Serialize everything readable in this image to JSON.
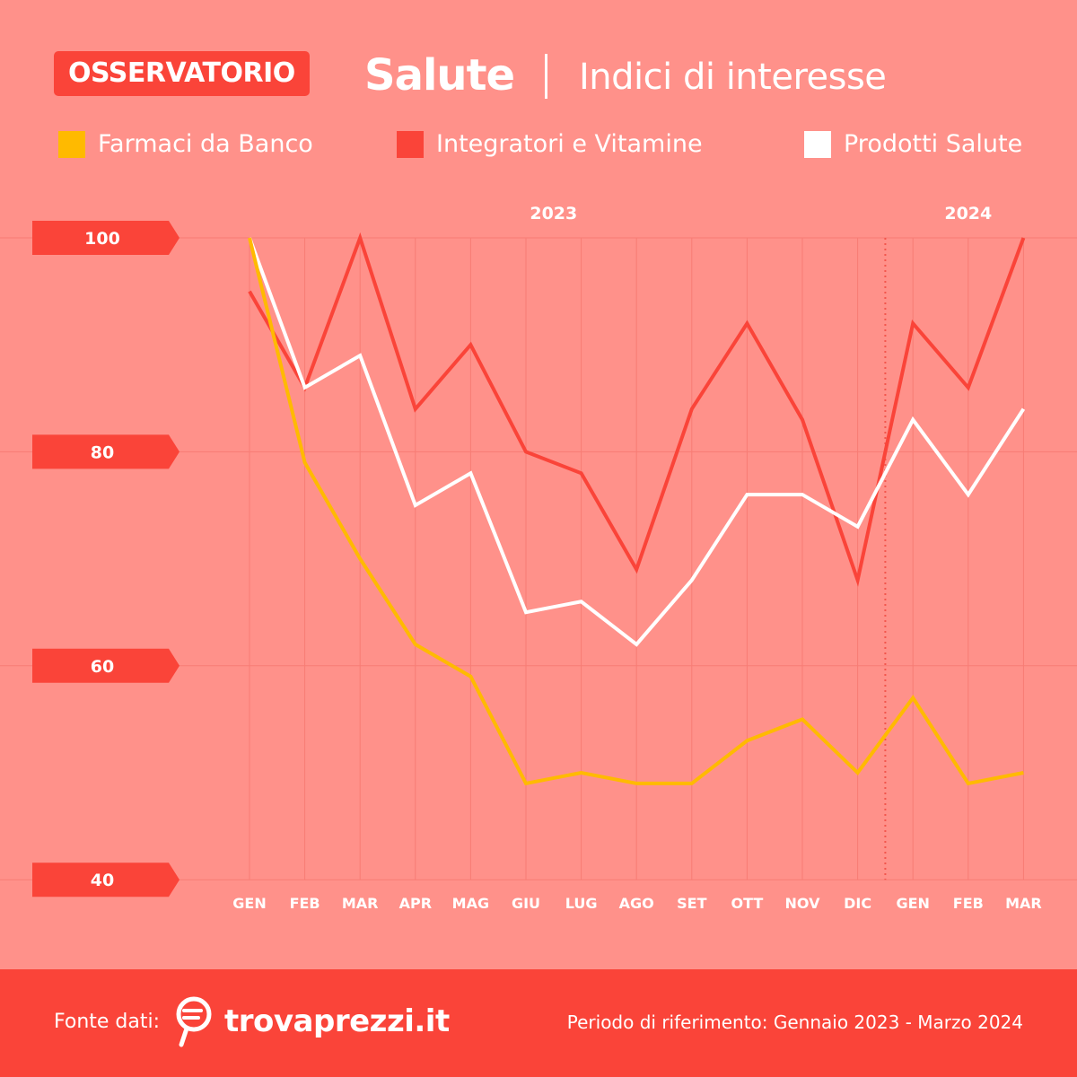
{
  "header": {
    "badge": "OSSERVATORIO",
    "title": "Salute",
    "subtitle": "Indici di interesse"
  },
  "legend": [
    {
      "label": "Farmaci da Banco",
      "color": "#ffba00"
    },
    {
      "label": "Integratori e Vitamine",
      "color": "#fa4439"
    },
    {
      "label": "Prodotti Salute",
      "color": "#ffffff"
    }
  ],
  "colors": {
    "background": "#ff918a",
    "accent": "#fa4439",
    "grid": "#f77c74"
  },
  "chart_data": {
    "type": "line",
    "year_labels": [
      "2023",
      "2024"
    ],
    "x": [
      "GEN",
      "FEB",
      "MAR",
      "APR",
      "MAG",
      "GIU",
      "LUG",
      "AGO",
      "SET",
      "OTT",
      "NOV",
      "DIC",
      "GEN",
      "FEB",
      "MAR"
    ],
    "yticks": [
      100,
      80,
      60,
      40
    ],
    "ylim": [
      40,
      100
    ],
    "grid": true,
    "year_divider_after": "DIC",
    "series": [
      {
        "name": "Farmaci da Banco",
        "color": "#ffba00",
        "values": [
          100,
          79,
          70,
          62,
          59,
          49,
          50,
          49,
          49,
          53,
          55,
          50,
          57,
          49,
          50
        ]
      },
      {
        "name": "Integratori e Vitamine",
        "color": "#fa4439",
        "values": [
          95,
          86,
          100,
          84,
          90,
          80,
          78,
          69,
          84,
          92,
          83,
          68,
          92,
          86,
          100
        ]
      },
      {
        "name": "Prodotti Salute",
        "color": "#ffffff",
        "values": [
          100,
          86,
          89,
          75,
          78,
          65,
          66,
          62,
          68,
          76,
          76,
          73,
          83,
          76,
          84
        ]
      }
    ]
  },
  "footer": {
    "source_label": "Fonte dati:",
    "brand": "trovaprezzi.it",
    "period": "Periodo di riferimento: Gennaio 2023 - Marzo 2024"
  }
}
